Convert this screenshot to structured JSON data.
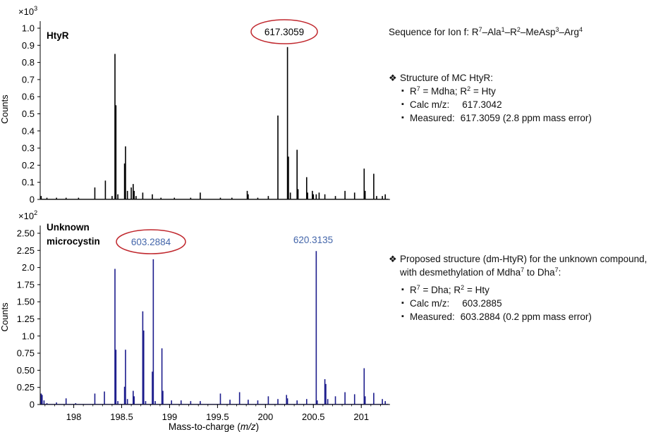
{
  "chart_data": [
    {
      "type": "bar",
      "title": "HtyR",
      "exponent_label": "×10",
      "exponent_power": "3",
      "ylabel": "Counts",
      "xlabel": "",
      "xlim": [
        197.65,
        201.3
      ],
      "ylim": [
        0,
        1.05
      ],
      "y_ticks": [
        "0",
        "0.1",
        "0.2",
        "0.3",
        "0.4",
        "0.5",
        "0.6",
        "0.7",
        "0.8",
        "0.9",
        "1.0"
      ],
      "highlight_label": "617.3059",
      "highlight_mz": 200.23,
      "color": "#000000",
      "peaks": [
        {
          "mz": 197.66,
          "v": 0.02
        },
        {
          "mz": 197.72,
          "v": 0.01
        },
        {
          "mz": 197.82,
          "v": 0.01
        },
        {
          "mz": 197.92,
          "v": 0.01
        },
        {
          "mz": 198.05,
          "v": 0.01
        },
        {
          "mz": 198.22,
          "v": 0.07
        },
        {
          "mz": 198.33,
          "v": 0.11
        },
        {
          "mz": 198.4,
          "v": 0.02
        },
        {
          "mz": 198.43,
          "v": 0.85
        },
        {
          "mz": 198.44,
          "v": 0.55
        },
        {
          "mz": 198.46,
          "v": 0.03
        },
        {
          "mz": 198.53,
          "v": 0.21
        },
        {
          "mz": 198.54,
          "v": 0.31
        },
        {
          "mz": 198.56,
          "v": 0.05
        },
        {
          "mz": 198.6,
          "v": 0.07
        },
        {
          "mz": 198.62,
          "v": 0.09
        },
        {
          "mz": 198.63,
          "v": 0.05
        },
        {
          "mz": 198.65,
          "v": 0.02
        },
        {
          "mz": 198.72,
          "v": 0.04
        },
        {
          "mz": 198.82,
          "v": 0.03
        },
        {
          "mz": 198.91,
          "v": 0.01
        },
        {
          "mz": 199.05,
          "v": 0.01
        },
        {
          "mz": 199.22,
          "v": 0.01
        },
        {
          "mz": 199.32,
          "v": 0.04
        },
        {
          "mz": 199.53,
          "v": 0.01
        },
        {
          "mz": 199.65,
          "v": 0.01
        },
        {
          "mz": 199.81,
          "v": 0.05
        },
        {
          "mz": 199.82,
          "v": 0.03
        },
        {
          "mz": 199.92,
          "v": 0.01
        },
        {
          "mz": 200.03,
          "v": 0.02
        },
        {
          "mz": 200.13,
          "v": 0.49
        },
        {
          "mz": 200.23,
          "v": 0.89
        },
        {
          "mz": 200.24,
          "v": 0.25
        },
        {
          "mz": 200.26,
          "v": 0.04
        },
        {
          "mz": 200.33,
          "v": 0.29
        },
        {
          "mz": 200.34,
          "v": 0.06
        },
        {
          "mz": 200.43,
          "v": 0.13
        },
        {
          "mz": 200.44,
          "v": 0.04
        },
        {
          "mz": 200.49,
          "v": 0.05
        },
        {
          "mz": 200.5,
          "v": 0.03
        },
        {
          "mz": 200.53,
          "v": 0.03
        },
        {
          "mz": 200.56,
          "v": 0.04
        },
        {
          "mz": 200.62,
          "v": 0.03
        },
        {
          "mz": 200.73,
          "v": 0.02
        },
        {
          "mz": 200.83,
          "v": 0.05
        },
        {
          "mz": 200.93,
          "v": 0.04
        },
        {
          "mz": 201.03,
          "v": 0.18
        },
        {
          "mz": 201.04,
          "v": 0.05
        },
        {
          "mz": 201.13,
          "v": 0.15
        },
        {
          "mz": 201.16,
          "v": 0.02
        },
        {
          "mz": 201.22,
          "v": 0.02
        },
        {
          "mz": 201.25,
          "v": 0.03
        }
      ]
    },
    {
      "type": "bar",
      "title": "Unknown microcystin",
      "title_lines": [
        "Unknown",
        "microcystin"
      ],
      "exponent_label": "×10",
      "exponent_power": "2",
      "ylabel": "Counts",
      "xlabel": "Mass-to-charge (m/z)",
      "xlim": [
        197.65,
        201.3
      ],
      "ylim": [
        0,
        2.6
      ],
      "x_ticks": [
        "198",
        "198.5",
        "199",
        "199.5",
        "200",
        "200.5",
        "201"
      ],
      "y_ticks": [
        "0",
        "0.25",
        "0.50",
        "0.75",
        "1.0",
        "1.25",
        "1.50",
        "1.75",
        "2.0",
        "2.25",
        "2.50"
      ],
      "highlight_label": "603.2884",
      "highlight_mz": 198.83,
      "annotation_label": "620.3135",
      "annotation_mz": 200.53,
      "color": "#1c1c8c",
      "peaks": [
        {
          "mz": 197.66,
          "v": 0.16
        },
        {
          "mz": 197.67,
          "v": 0.14
        },
        {
          "mz": 197.69,
          "v": 0.06
        },
        {
          "mz": 197.72,
          "v": 0.02
        },
        {
          "mz": 197.82,
          "v": 0.03
        },
        {
          "mz": 197.92,
          "v": 0.09
        },
        {
          "mz": 198.02,
          "v": 0.02
        },
        {
          "mz": 198.22,
          "v": 0.16
        },
        {
          "mz": 198.32,
          "v": 0.19
        },
        {
          "mz": 198.43,
          "v": 1.98
        },
        {
          "mz": 198.44,
          "v": 0.8
        },
        {
          "mz": 198.46,
          "v": 0.05
        },
        {
          "mz": 198.53,
          "v": 0.26
        },
        {
          "mz": 198.54,
          "v": 0.8
        },
        {
          "mz": 198.56,
          "v": 0.08
        },
        {
          "mz": 198.62,
          "v": 0.2
        },
        {
          "mz": 198.63,
          "v": 0.12
        },
        {
          "mz": 198.72,
          "v": 1.36
        },
        {
          "mz": 198.73,
          "v": 1.08
        },
        {
          "mz": 198.75,
          "v": 0.05
        },
        {
          "mz": 198.82,
          "v": 0.48
        },
        {
          "mz": 198.83,
          "v": 2.12
        },
        {
          "mz": 198.85,
          "v": 0.05
        },
        {
          "mz": 198.92,
          "v": 0.82
        },
        {
          "mz": 198.93,
          "v": 0.2
        },
        {
          "mz": 199.02,
          "v": 0.06
        },
        {
          "mz": 199.12,
          "v": 0.06
        },
        {
          "mz": 199.22,
          "v": 0.05
        },
        {
          "mz": 199.32,
          "v": 0.05
        },
        {
          "mz": 199.53,
          "v": 0.16
        },
        {
          "mz": 199.63,
          "v": 0.07
        },
        {
          "mz": 199.73,
          "v": 0.18
        },
        {
          "mz": 199.82,
          "v": 0.07
        },
        {
          "mz": 199.92,
          "v": 0.06
        },
        {
          "mz": 200.03,
          "v": 0.12
        },
        {
          "mz": 200.13,
          "v": 0.08
        },
        {
          "mz": 200.22,
          "v": 0.14
        },
        {
          "mz": 200.23,
          "v": 0.09
        },
        {
          "mz": 200.33,
          "v": 0.06
        },
        {
          "mz": 200.43,
          "v": 0.08
        },
        {
          "mz": 200.53,
          "v": 2.24
        },
        {
          "mz": 200.54,
          "v": 0.06
        },
        {
          "mz": 200.62,
          "v": 0.37
        },
        {
          "mz": 200.63,
          "v": 0.3
        },
        {
          "mz": 200.65,
          "v": 0.08
        },
        {
          "mz": 200.73,
          "v": 0.12
        },
        {
          "mz": 200.83,
          "v": 0.18
        },
        {
          "mz": 200.93,
          "v": 0.15
        },
        {
          "mz": 201.03,
          "v": 0.53
        },
        {
          "mz": 201.04,
          "v": 0.12
        },
        {
          "mz": 201.13,
          "v": 0.17
        },
        {
          "mz": 201.22,
          "v": 0.08
        },
        {
          "mz": 201.25,
          "v": 0.05
        }
      ]
    }
  ],
  "notes": {
    "sequence": {
      "prefix": "Sequence for Ion f: R",
      "s1": "7",
      "t1": "–Ala",
      "s2": "1",
      "t2": "–R",
      "s3": "2",
      "t3": "–MeAsp",
      "s4": "3",
      "t4": "–Arg",
      "s5": "4"
    },
    "htyr": {
      "bullet": "❖",
      "header": "Structure of MC HtyR:",
      "r_line": {
        "a": "R",
        "a_sup": "7",
        "b": " = Mdha; R",
        "b_sup": "2",
        "c": " = Hty"
      },
      "calc_label": "Calc m/z:",
      "calc_value": "617.3042",
      "measured_label": "Measured:",
      "measured_value": "617.3059 (2.8 ppm mass error)"
    },
    "unknown": {
      "bullet": "❖",
      "header_line1": "Proposed structure (dm-HtyR) for the unknown compound,",
      "header_line2_a": "with desmethylation of Mdha",
      "header_line2_sup1": "7",
      "header_line2_b": " to Dha",
      "header_line2_sup2": "7",
      "header_line2_c": ":",
      "r_line": {
        "a": "R",
        "a_sup": "7",
        "b": " = Dha; R",
        "b_sup": "2",
        "c": " = Hty"
      },
      "calc_label": "Calc m/z:",
      "calc_value": "603.2885",
      "measured_label": "Measured:",
      "measured_value": "603.2884 (0.2 ppm mass error)"
    }
  },
  "colors": {
    "ellipse": "#c0272d",
    "top_trace": "#000000",
    "bottom_trace": "#1c1c8c",
    "blue_label": "#4466aa",
    "axis": "#000000"
  }
}
